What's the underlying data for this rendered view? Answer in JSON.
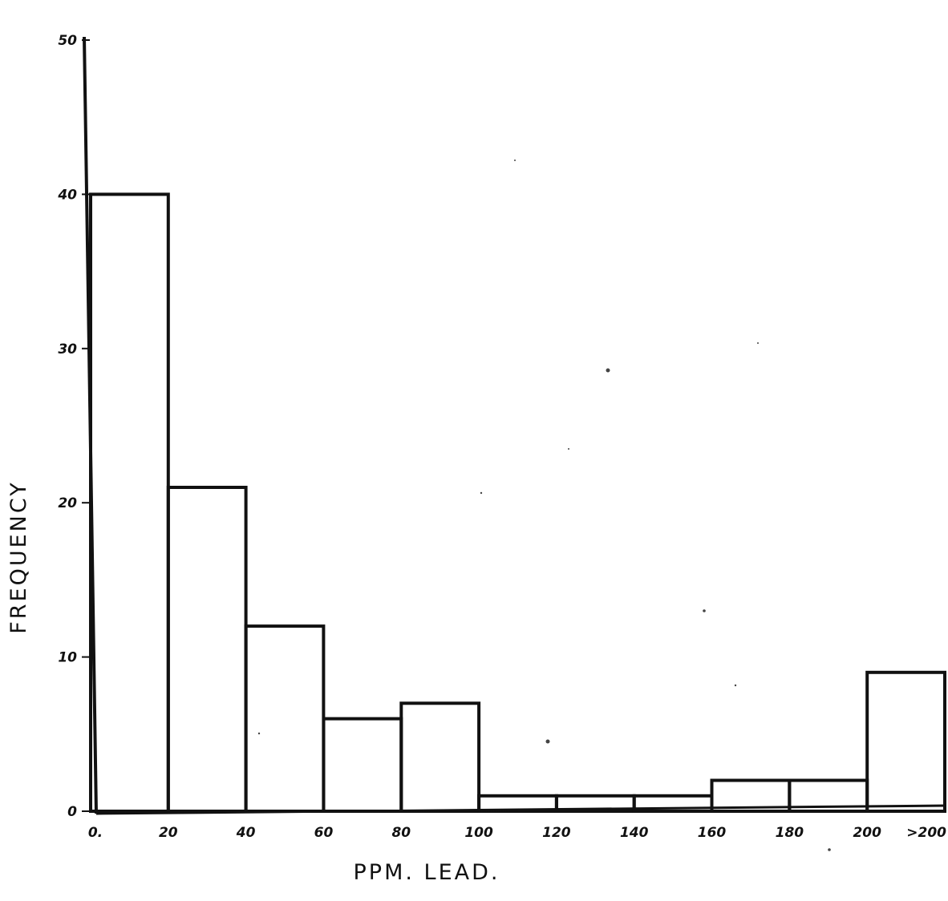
{
  "chart_data": {
    "type": "bar",
    "histogram": true,
    "title": "",
    "xlabel": "PPM. LEAD.",
    "ylabel": "FREQUENCY",
    "ylim": [
      0,
      50
    ],
    "grid": false,
    "x_tick_labels": [
      "0.",
      "20",
      "40",
      "60",
      "80",
      "100",
      "120",
      "140",
      "160",
      "180",
      "200",
      ">200"
    ],
    "y_tick_labels": [
      "0",
      "10",
      "20",
      "30",
      "40",
      "50"
    ],
    "y_ticks": [
      0,
      10,
      20,
      30,
      40,
      50
    ],
    "bins": [
      {
        "range": "0-20",
        "value": 40
      },
      {
        "range": "20-40",
        "value": 21
      },
      {
        "range": "40-60",
        "value": 12
      },
      {
        "range": "60-80",
        "value": 6
      },
      {
        "range": "80-100",
        "value": 7
      },
      {
        "range": "100-120",
        "value": 1
      },
      {
        "range": "120-140",
        "value": 1
      },
      {
        "range": "140-160",
        "value": 1
      },
      {
        "range": "160-180",
        "value": 2
      },
      {
        "range": "180-200",
        "value": 2
      },
      {
        "range": ">200",
        "value": 9
      }
    ],
    "colors": {
      "line": "#111111",
      "background": "#ffffff"
    }
  }
}
